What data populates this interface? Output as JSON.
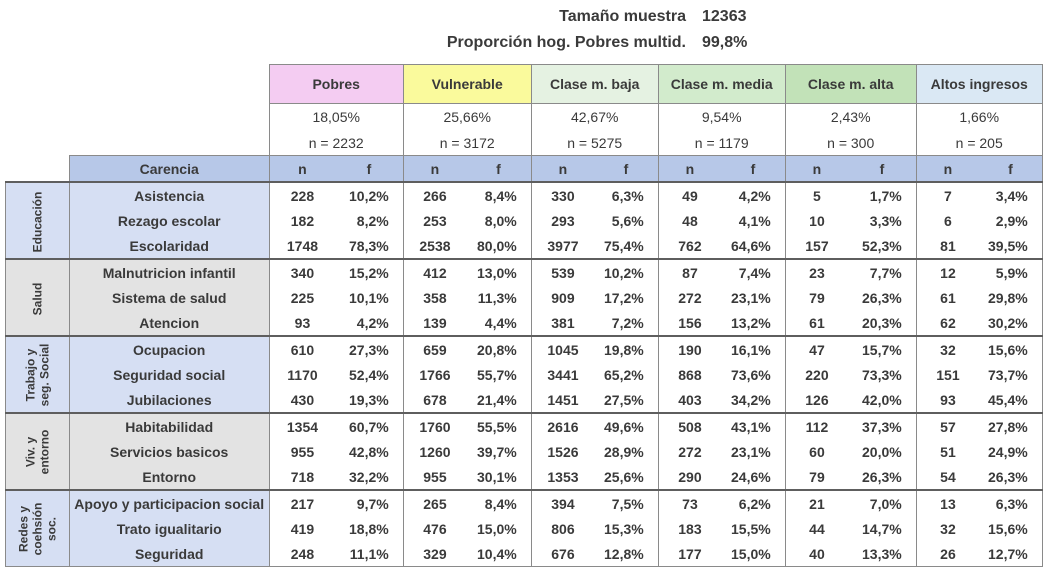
{
  "summary": {
    "sample_label": "Tamaño muestra",
    "sample_value": "12363",
    "prop_label": "Proporción hog. Pobres multid.",
    "prop_value": "99,8%"
  },
  "groups": [
    {
      "name": "Pobres",
      "pct": "18,05%",
      "n": "n = 2232",
      "color": "#f4ccf2"
    },
    {
      "name": "Vulnerable",
      "pct": "25,66%",
      "n": "n = 3172",
      "color": "#fafa9c"
    },
    {
      "name": "Clase m. baja",
      "pct": "42,67%",
      "n": "n = 5275",
      "color": "#e5f2e2"
    },
    {
      "name": "Clase m. media",
      "pct": "9,54%",
      "n": "n = 1179",
      "color": "#d2ebcc"
    },
    {
      "name": "Clase m. alta",
      "pct": "2,43%",
      "n": "n = 300",
      "color": "#c2e2b8"
    },
    {
      "name": "Altos ingresos",
      "pct": "1,66%",
      "n": "n = 205",
      "color": "#dae8f4"
    }
  ],
  "column_header": {
    "carencia": "Carencia",
    "n": "n",
    "f": "f"
  },
  "sections": [
    {
      "name": "Educación",
      "color": "#d6dff3",
      "items": [
        {
          "label": "Asistencia",
          "values": [
            [
              "228",
              "10,2%"
            ],
            [
              "266",
              "8,4%"
            ],
            [
              "330",
              "6,3%"
            ],
            [
              "49",
              "4,2%"
            ],
            [
              "5",
              "1,7%"
            ],
            [
              "7",
              "3,4%"
            ]
          ]
        },
        {
          "label": "Rezago escolar",
          "values": [
            [
              "182",
              "8,2%"
            ],
            [
              "253",
              "8,0%"
            ],
            [
              "293",
              "5,6%"
            ],
            [
              "48",
              "4,1%"
            ],
            [
              "10",
              "3,3%"
            ],
            [
              "6",
              "2,9%"
            ]
          ]
        },
        {
          "label": "Escolaridad",
          "values": [
            [
              "1748",
              "78,3%"
            ],
            [
              "2538",
              "80,0%"
            ],
            [
              "3977",
              "75,4%"
            ],
            [
              "762",
              "64,6%"
            ],
            [
              "157",
              "52,3%"
            ],
            [
              "81",
              "39,5%"
            ]
          ]
        }
      ]
    },
    {
      "name": "Salud",
      "color": "#e3e3e3",
      "items": [
        {
          "label": "Malnutricion infantil",
          "values": [
            [
              "340",
              "15,2%"
            ],
            [
              "412",
              "13,0%"
            ],
            [
              "539",
              "10,2%"
            ],
            [
              "87",
              "7,4%"
            ],
            [
              "23",
              "7,7%"
            ],
            [
              "12",
              "5,9%"
            ]
          ]
        },
        {
          "label": "Sistema de salud",
          "values": [
            [
              "225",
              "10,1%"
            ],
            [
              "358",
              "11,3%"
            ],
            [
              "909",
              "17,2%"
            ],
            [
              "272",
              "23,1%"
            ],
            [
              "79",
              "26,3%"
            ],
            [
              "61",
              "29,8%"
            ]
          ]
        },
        {
          "label": "Atencion",
          "values": [
            [
              "93",
              "4,2%"
            ],
            [
              "139",
              "4,4%"
            ],
            [
              "381",
              "7,2%"
            ],
            [
              "156",
              "13,2%"
            ],
            [
              "61",
              "20,3%"
            ],
            [
              "62",
              "30,2%"
            ]
          ]
        }
      ]
    },
    {
      "name": "Trabajo y\nseg. Social",
      "color": "#d6dff3",
      "items": [
        {
          "label": "Ocupacion",
          "values": [
            [
              "610",
              "27,3%"
            ],
            [
              "659",
              "20,8%"
            ],
            [
              "1045",
              "19,8%"
            ],
            [
              "190",
              "16,1%"
            ],
            [
              "47",
              "15,7%"
            ],
            [
              "32",
              "15,6%"
            ]
          ]
        },
        {
          "label": "Seguridad social",
          "values": [
            [
              "1170",
              "52,4%"
            ],
            [
              "1766",
              "55,7%"
            ],
            [
              "3441",
              "65,2%"
            ],
            [
              "868",
              "73,6%"
            ],
            [
              "220",
              "73,3%"
            ],
            [
              "151",
              "73,7%"
            ]
          ]
        },
        {
          "label": "Jubilaciones",
          "values": [
            [
              "430",
              "19,3%"
            ],
            [
              "678",
              "21,4%"
            ],
            [
              "1451",
              "27,5%"
            ],
            [
              "403",
              "34,2%"
            ],
            [
              "126",
              "42,0%"
            ],
            [
              "93",
              "45,4%"
            ]
          ]
        }
      ]
    },
    {
      "name": "Viv. y\nentorno",
      "color": "#e3e3e3",
      "items": [
        {
          "label": "Habitabilidad",
          "values": [
            [
              "1354",
              "60,7%"
            ],
            [
              "1760",
              "55,5%"
            ],
            [
              "2616",
              "49,6%"
            ],
            [
              "508",
              "43,1%"
            ],
            [
              "112",
              "37,3%"
            ],
            [
              "57",
              "27,8%"
            ]
          ]
        },
        {
          "label": "Servicios basicos",
          "values": [
            [
              "955",
              "42,8%"
            ],
            [
              "1260",
              "39,7%"
            ],
            [
              "1526",
              "28,9%"
            ],
            [
              "272",
              "23,1%"
            ],
            [
              "60",
              "20,0%"
            ],
            [
              "51",
              "24,9%"
            ]
          ]
        },
        {
          "label": "Entorno",
          "values": [
            [
              "718",
              "32,2%"
            ],
            [
              "955",
              "30,1%"
            ],
            [
              "1353",
              "25,6%"
            ],
            [
              "290",
              "24,6%"
            ],
            [
              "79",
              "26,3%"
            ],
            [
              "54",
              "26,3%"
            ]
          ]
        }
      ]
    },
    {
      "name": "Redes y\ncoehsión\nsoc.",
      "color": "#d6dff3",
      "items": [
        {
          "label": "Apoyo y participacion social",
          "values": [
            [
              "217",
              "9,7%"
            ],
            [
              "265",
              "8,4%"
            ],
            [
              "394",
              "7,5%"
            ],
            [
              "73",
              "6,2%"
            ],
            [
              "21",
              "7,0%"
            ],
            [
              "13",
              "6,3%"
            ]
          ]
        },
        {
          "label": "Trato igualitario",
          "values": [
            [
              "419",
              "18,8%"
            ],
            [
              "476",
              "15,0%"
            ],
            [
              "806",
              "15,3%"
            ],
            [
              "183",
              "15,5%"
            ],
            [
              "44",
              "14,7%"
            ],
            [
              "32",
              "15,6%"
            ]
          ]
        },
        {
          "label": "Seguridad",
          "values": [
            [
              "248",
              "11,1%"
            ],
            [
              "329",
              "10,4%"
            ],
            [
              "676",
              "12,8%"
            ],
            [
              "177",
              "15,0%"
            ],
            [
              "40",
              "13,3%"
            ],
            [
              "26",
              "12,7%"
            ]
          ]
        }
      ]
    }
  ]
}
